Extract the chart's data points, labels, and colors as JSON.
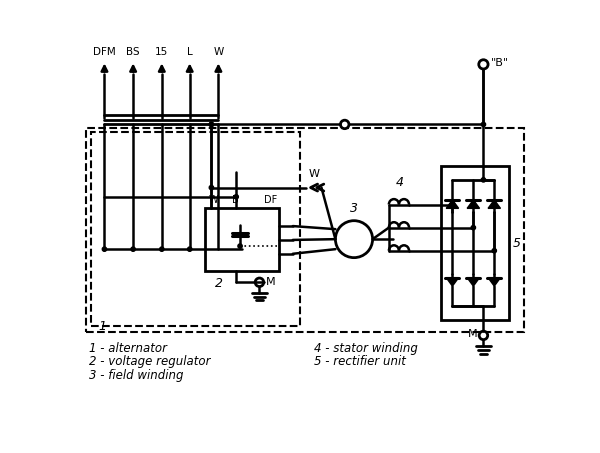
{
  "bg": "#ffffff",
  "lc": "#000000",
  "pin_labels": [
    "DFM",
    "BS",
    "15",
    "L",
    "W"
  ],
  "legend": [
    "1 - alternator",
    "2 - voltage regulator",
    "3 - field winding",
    "4 - stator winding",
    "5 - rectifier unit"
  ]
}
